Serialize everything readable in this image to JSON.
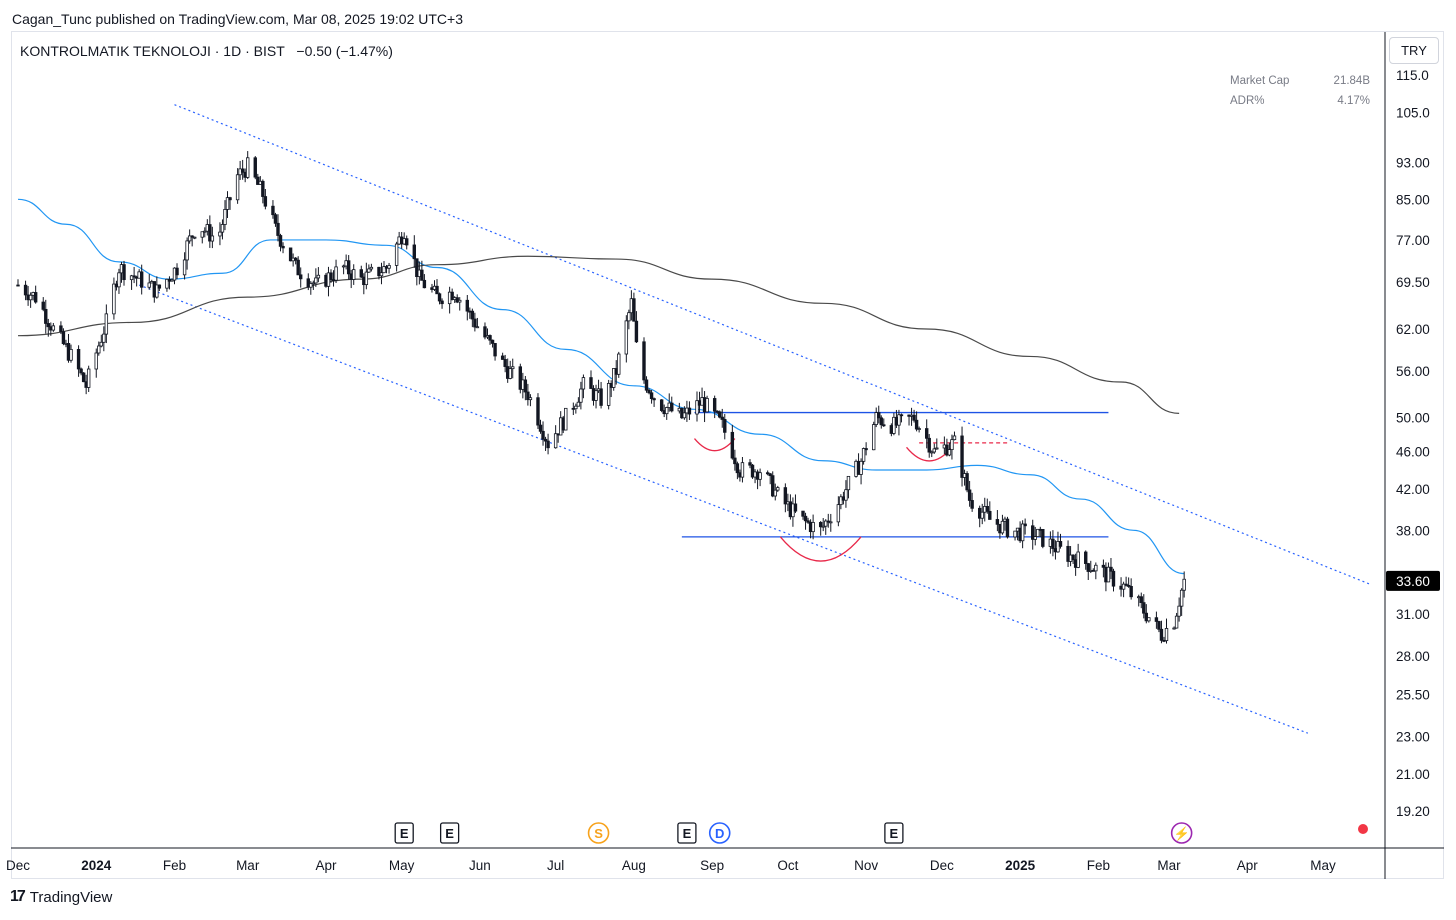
{
  "header": {
    "published": "Cagan_Tunc published on TradingView.com, Mar 08, 2025 19:02 UTC+3"
  },
  "symbol": {
    "title": "KONTROLMATIK TEKNOLOJI · 1D · BIST",
    "change": "−0.50 (−1.47%)"
  },
  "stats": [
    {
      "label": "Market Cap",
      "value": "21.84B"
    },
    {
      "label": "ADR%",
      "value": "4.17%"
    }
  ],
  "currency": "TRY",
  "footer": {
    "brand": "TradingView",
    "logo": "17"
  },
  "colors": {
    "candle": "#131722",
    "ma_fast": "#2196f3",
    "ma_slow": "#4a4a4a",
    "channel": "#2962ff",
    "levels": "#1e53e5",
    "arcs": "#e8294a",
    "last_price_bg": "#000000",
    "earnings": "#131722",
    "split": "#f7a21b",
    "dividend": "#2962ff",
    "flash": "#9c27b0"
  },
  "chart_data": {
    "type": "candlestick",
    "log_scale": true,
    "y_ticks": [
      "115.0",
      "105.0",
      "93.00",
      "85.00",
      "77.00",
      "69.50",
      "62.00",
      "56.00",
      "50.00",
      "46.00",
      "42.00",
      "38.00",
      "31.00",
      "28.00",
      "25.50",
      "23.00",
      "21.00",
      "19.20"
    ],
    "y_tick_values": [
      115,
      105,
      93,
      85,
      77,
      69.5,
      62,
      56,
      50,
      46,
      42,
      38,
      31,
      28,
      25.5,
      23,
      21,
      19.2
    ],
    "x_ticks": [
      {
        "label": "Dec",
        "date": "2023-12-01",
        "bold": false
      },
      {
        "label": "2024",
        "date": "2024-01-01",
        "bold": true
      },
      {
        "label": "Feb",
        "date": "2024-02-01",
        "bold": false
      },
      {
        "label": "Mar",
        "date": "2024-03-01",
        "bold": false
      },
      {
        "label": "Apr",
        "date": "2024-04-01",
        "bold": false
      },
      {
        "label": "May",
        "date": "2024-05-01",
        "bold": false
      },
      {
        "label": "Jun",
        "date": "2024-06-01",
        "bold": false
      },
      {
        "label": "Jul",
        "date": "2024-07-01",
        "bold": false
      },
      {
        "label": "Aug",
        "date": "2024-08-01",
        "bold": false
      },
      {
        "label": "Sep",
        "date": "2024-09-01",
        "bold": false
      },
      {
        "label": "Oct",
        "date": "2024-10-01",
        "bold": false
      },
      {
        "label": "Nov",
        "date": "2024-11-01",
        "bold": false
      },
      {
        "label": "Dec",
        "date": "2024-12-01",
        "bold": false
      },
      {
        "label": "2025",
        "date": "2025-01-01",
        "bold": true
      },
      {
        "label": "Feb",
        "date": "2025-02-01",
        "bold": false
      },
      {
        "label": "Mar",
        "date": "2025-03-01",
        "bold": false
      },
      {
        "label": "Apr",
        "date": "2025-04-01",
        "bold": false
      },
      {
        "label": "May",
        "date": "2025-05-01",
        "bold": false
      }
    ],
    "x_range": [
      "2023-12-01",
      "2025-05-31"
    ],
    "y_range": [
      18.0,
      125
    ],
    "last_price": "33.60",
    "price_path": [
      [
        "2023-12-01",
        69
      ],
      [
        "2023-12-08",
        67
      ],
      [
        "2023-12-15",
        62
      ],
      [
        "2023-12-22",
        58
      ],
      [
        "2023-12-28",
        54
      ],
      [
        "2024-01-05",
        63
      ],
      [
        "2024-01-10",
        72
      ],
      [
        "2024-01-18",
        70
      ],
      [
        "2024-01-25",
        68
      ],
      [
        "2024-02-02",
        72
      ],
      [
        "2024-02-10",
        80
      ],
      [
        "2024-02-18",
        77
      ],
      [
        "2024-02-26",
        90
      ],
      [
        "2024-03-01",
        92
      ],
      [
        "2024-03-07",
        86
      ],
      [
        "2024-03-12",
        79
      ],
      [
        "2024-03-20",
        72
      ],
      [
        "2024-03-28",
        69
      ],
      [
        "2024-04-08",
        72
      ],
      [
        "2024-04-15",
        70
      ],
      [
        "2024-04-25",
        72
      ],
      [
        "2024-05-02",
        79
      ],
      [
        "2024-05-08",
        70
      ],
      [
        "2024-05-15",
        67
      ],
      [
        "2024-05-22",
        68
      ],
      [
        "2024-05-30",
        63
      ],
      [
        "2024-06-10",
        57
      ],
      [
        "2024-06-20",
        53
      ],
      [
        "2024-06-28",
        47
      ],
      [
        "2024-07-05",
        50
      ],
      [
        "2024-07-12",
        54
      ],
      [
        "2024-07-20",
        52
      ],
      [
        "2024-07-25",
        56
      ],
      [
        "2024-07-31",
        66
      ],
      [
        "2024-08-03",
        56
      ],
      [
        "2024-08-10",
        52
      ],
      [
        "2024-08-20",
        50
      ],
      [
        "2024-08-28",
        52
      ],
      [
        "2024-09-05",
        49
      ],
      [
        "2024-09-12",
        44
      ],
      [
        "2024-09-20",
        44
      ],
      [
        "2024-09-28",
        41
      ],
      [
        "2024-10-06",
        39
      ],
      [
        "2024-10-14",
        38
      ],
      [
        "2024-10-22",
        41
      ],
      [
        "2024-10-30",
        45
      ],
      [
        "2024-11-05",
        50
      ],
      [
        "2024-11-12",
        49
      ],
      [
        "2024-11-20",
        50
      ],
      [
        "2024-11-28",
        46
      ],
      [
        "2024-12-06",
        47
      ],
      [
        "2024-12-12",
        41
      ],
      [
        "2024-12-20",
        39
      ],
      [
        "2024-12-28",
        38
      ],
      [
        "2025-01-08",
        37.5
      ],
      [
        "2025-01-18",
        36
      ],
      [
        "2025-01-28",
        35
      ],
      [
        "2025-02-05",
        34
      ],
      [
        "2025-02-12",
        33
      ],
      [
        "2025-02-20",
        31
      ],
      [
        "2025-02-26",
        29.5
      ],
      [
        "2025-03-03",
        30.5
      ],
      [
        "2025-03-07",
        33.6
      ]
    ],
    "moving_averages": [
      {
        "period": "fast",
        "points": [
          [
            "2023-12-01",
            85
          ],
          [
            "2023-12-20",
            80
          ],
          [
            "2024-01-10",
            73
          ],
          [
            "2024-01-30",
            70
          ],
          [
            "2024-02-20",
            71
          ],
          [
            "2024-03-10",
            77
          ],
          [
            "2024-04-01",
            77
          ],
          [
            "2024-04-25",
            76
          ],
          [
            "2024-05-15",
            72
          ],
          [
            "2024-06-10",
            65
          ],
          [
            "2024-07-05",
            59
          ],
          [
            "2024-08-01",
            54
          ],
          [
            "2024-08-25",
            51
          ],
          [
            "2024-09-20",
            48
          ],
          [
            "2024-10-15",
            45
          ],
          [
            "2024-11-05",
            44
          ],
          [
            "2024-11-25",
            44
          ],
          [
            "2024-12-15",
            44.5
          ],
          [
            "2025-01-05",
            43.5
          ],
          [
            "2025-01-25",
            41
          ],
          [
            "2025-02-15",
            38
          ],
          [
            "2025-03-07",
            34.2
          ]
        ]
      },
      {
        "period": "slow",
        "points": [
          [
            "2023-12-01",
            61
          ],
          [
            "2024-01-15",
            63
          ],
          [
            "2024-03-01",
            67
          ],
          [
            "2024-04-15",
            70
          ],
          [
            "2024-05-15",
            72.5
          ],
          [
            "2024-06-20",
            74
          ],
          [
            "2024-07-25",
            73.5
          ],
          [
            "2024-09-01",
            70
          ],
          [
            "2024-10-15",
            66
          ],
          [
            "2024-11-25",
            62
          ],
          [
            "2025-01-05",
            58
          ],
          [
            "2025-02-10",
            54.5
          ],
          [
            "2025-03-05",
            50.5
          ]
        ]
      }
    ],
    "channel_lines": [
      {
        "from": [
          "2024-02-01",
          107
        ],
        "to": [
          "2025-05-20",
          33.3
        ]
      },
      {
        "from": [
          "2024-01-18",
          69
        ],
        "to": [
          "2025-04-25",
          23.2
        ]
      }
    ],
    "horizontal_levels": [
      {
        "price": 50.6,
        "from": "2024-08-25",
        "to": "2025-02-05"
      },
      {
        "price": 37.4,
        "from": "2024-08-20",
        "to": "2025-02-05"
      }
    ],
    "arcs": [
      {
        "from": "2024-08-25",
        "to": "2024-09-10",
        "price": 47.5
      },
      {
        "from": "2024-11-17",
        "to": "2024-12-05",
        "price": 46.5
      },
      {
        "from": "2024-09-28",
        "to": "2024-10-30",
        "price": 37.4
      }
    ],
    "event_markers": [
      {
        "label": "E",
        "date": "2024-05-02"
      },
      {
        "label": "E",
        "date": "2024-05-20"
      },
      {
        "label": "S",
        "date": "2024-07-18"
      },
      {
        "label": "E",
        "date": "2024-08-22"
      },
      {
        "label": "D",
        "date": "2024-09-04"
      },
      {
        "label": "E",
        "date": "2024-11-12"
      },
      {
        "label": "⚡",
        "date": "2025-03-06"
      }
    ]
  }
}
